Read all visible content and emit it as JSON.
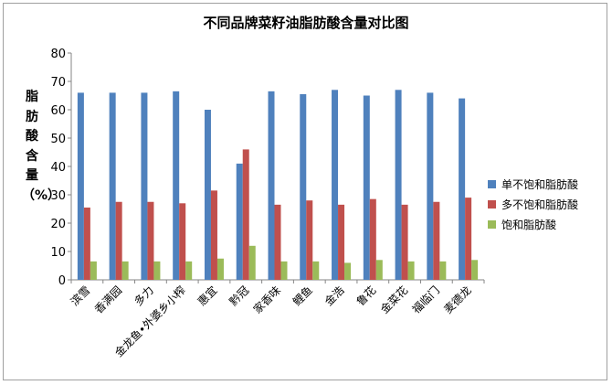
{
  "chart_data": {
    "type": "bar",
    "title": "不同品牌菜籽油脂肪酸含量对比图",
    "ylabel": "脂肪酸含量（%）",
    "xlabel": "",
    "ylim": [
      0,
      80
    ],
    "yticks": [
      0,
      10,
      20,
      30,
      40,
      50,
      60,
      70,
      80
    ],
    "grid": false,
    "legend_position": "right",
    "categories": [
      "滨雪",
      "香满园",
      "多力",
      "金龙鱼•外婆乡小榨",
      "惠宜",
      "黔冠",
      "家香味",
      "鲤鱼",
      "金浩",
      "鲁花",
      "金菜花",
      "福临门",
      "麦德龙"
    ],
    "series": [
      {
        "name": "单不饱和脂肪酸",
        "color": "#4f81bd",
        "values": [
          66,
          66,
          66,
          66.5,
          60,
          41,
          66.5,
          65.5,
          67,
          65,
          67,
          66,
          64
        ]
      },
      {
        "name": "多不饱和脂肪酸",
        "color": "#c0504d",
        "values": [
          25.5,
          27.5,
          27.5,
          27,
          31.5,
          46,
          26.5,
          28,
          26.5,
          28.5,
          26.5,
          27.5,
          29
        ]
      },
      {
        "name": "饱和脂肪酸",
        "color": "#9bbb59",
        "values": [
          6.5,
          6.5,
          6.5,
          6.5,
          7.5,
          12,
          6.5,
          6.5,
          6,
          7,
          6.5,
          6.5,
          7
        ]
      }
    ]
  }
}
